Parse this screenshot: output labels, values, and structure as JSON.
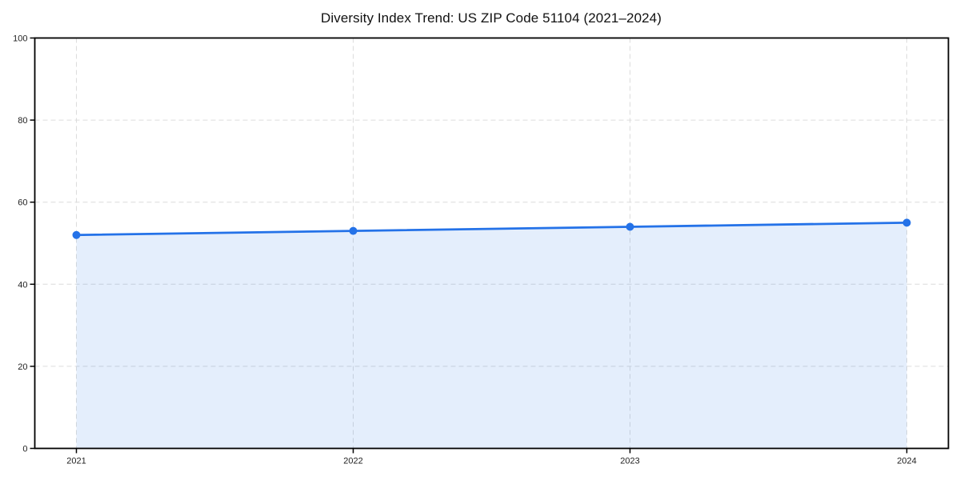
{
  "page": {
    "background": "#ffffff"
  },
  "chart_data": {
    "type": "area",
    "title": "Diversity Index Trend: US ZIP Code 51104 (2021–2024)",
    "categories": [
      "2021",
      "2022",
      "2023",
      "2024"
    ],
    "series": [
      {
        "name": "Diversity Index",
        "values": [
          52,
          53,
          54,
          55
        ]
      }
    ],
    "xlabel": "",
    "ylabel": "",
    "ylim": [
      0,
      100
    ],
    "yticks": [
      0,
      20,
      40,
      60,
      80,
      100
    ],
    "grid": true,
    "grid_style": "dashed",
    "legend": "none",
    "colors": {
      "line": "#2472e8",
      "marker": "#2472e8",
      "area_fill_effective": "#e9f1fc",
      "fill_opacity": 0.12,
      "grid": "#dcdcdc",
      "axis": "#000000",
      "text": "#222222",
      "title_text": "#111111",
      "background": "#ffffff"
    }
  }
}
